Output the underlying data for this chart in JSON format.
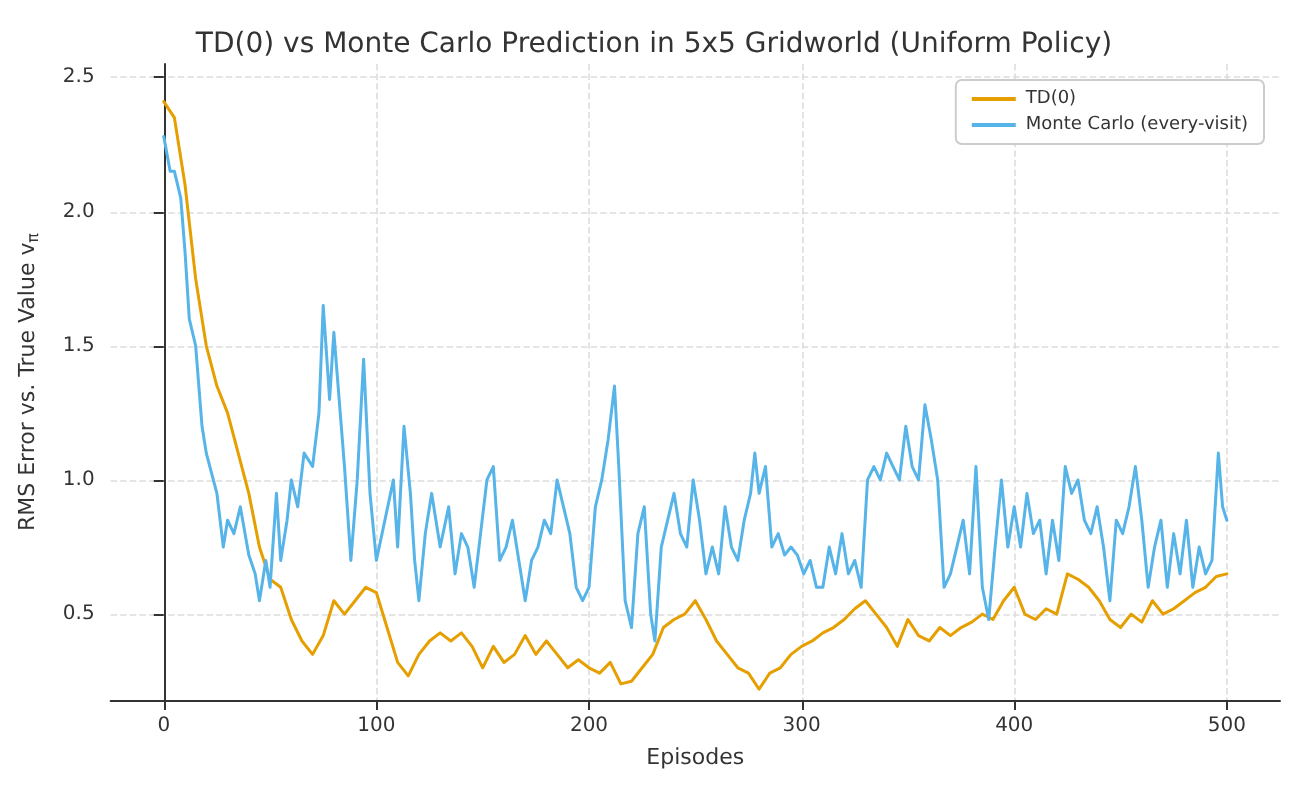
{
  "chart_data": {
    "type": "line",
    "title": "TD(0) vs Monte Carlo Prediction in 5x5 Gridworld (Uniform Policy)",
    "xlabel": "Episodes",
    "ylabel": "RMS Error vs. True Value v$_{π}$",
    "xlim": [
      -25,
      525
    ],
    "xticks": [
      0,
      100,
      200,
      300,
      400,
      500
    ],
    "ylim": [
      0.18,
      2.55
    ],
    "yticks": [
      0.5,
      {
        "value": 1,
        "label": "1.0"
      },
      1.5,
      {
        "value": 2,
        "label": "2.0"
      },
      2.5
    ],
    "grid": true,
    "legend": "top right",
    "marker": "none",
    "line_style": "solid",
    "series": [
      {
        "name": "TD(0)",
        "color": "#e69f00",
        "x": [
          0,
          5,
          10,
          15,
          20,
          25,
          30,
          35,
          40,
          45,
          50,
          55,
          60,
          65,
          70,
          75,
          80,
          85,
          90,
          95,
          100,
          105,
          110,
          115,
          120,
          125,
          130,
          135,
          140,
          145,
          150,
          155,
          160,
          165,
          170,
          175,
          180,
          185,
          190,
          195,
          200,
          205,
          210,
          215,
          220,
          225,
          230,
          235,
          240,
          245,
          250,
          255,
          260,
          265,
          270,
          275,
          280,
          285,
          290,
          295,
          300,
          305,
          310,
          315,
          320,
          325,
          330,
          335,
          340,
          345,
          350,
          355,
          360,
          365,
          370,
          375,
          380,
          385,
          390,
          395,
          400,
          405,
          410,
          415,
          420,
          425,
          430,
          435,
          440,
          445,
          450,
          455,
          460,
          465,
          470,
          475,
          480,
          485,
          490,
          495,
          500
        ],
        "values": [
          2.41,
          2.35,
          2.1,
          1.75,
          1.5,
          1.35,
          1.25,
          1.1,
          0.95,
          0.75,
          0.63,
          0.6,
          0.48,
          0.4,
          0.35,
          0.42,
          0.55,
          0.5,
          0.55,
          0.6,
          0.58,
          0.45,
          0.32,
          0.27,
          0.35,
          0.4,
          0.43,
          0.4,
          0.43,
          0.38,
          0.3,
          0.38,
          0.32,
          0.35,
          0.42,
          0.35,
          0.4,
          0.35,
          0.3,
          0.33,
          0.3,
          0.28,
          0.32,
          0.24,
          0.25,
          0.3,
          0.35,
          0.45,
          0.48,
          0.5,
          0.55,
          0.48,
          0.4,
          0.35,
          0.3,
          0.28,
          0.22,
          0.28,
          0.3,
          0.35,
          0.38,
          0.4,
          0.43,
          0.45,
          0.48,
          0.52,
          0.55,
          0.5,
          0.45,
          0.38,
          0.48,
          0.42,
          0.4,
          0.45,
          0.42,
          0.45,
          0.47,
          0.5,
          0.48,
          0.55,
          0.6,
          0.5,
          0.48,
          0.52,
          0.5,
          0.65,
          0.63,
          0.6,
          0.55,
          0.48,
          0.45,
          0.5,
          0.47,
          0.55,
          0.5,
          0.52,
          0.55,
          0.58,
          0.6,
          0.64,
          0.65
        ]
      },
      {
        "name": "Monte Carlo (every-visit)",
        "color": "#56b4e9",
        "x": [
          0,
          3,
          5,
          8,
          10,
          12,
          15,
          18,
          20,
          25,
          28,
          30,
          33,
          36,
          40,
          43,
          45,
          48,
          50,
          53,
          55,
          58,
          60,
          63,
          66,
          70,
          73,
          75,
          78,
          80,
          83,
          85,
          88,
          91,
          94,
          97,
          100,
          104,
          108,
          110,
          113,
          116,
          118,
          120,
          123,
          126,
          130,
          134,
          137,
          140,
          143,
          146,
          149,
          152,
          155,
          158,
          161,
          164,
          167,
          170,
          173,
          176,
          179,
          182,
          185,
          188,
          191,
          194,
          197,
          200,
          203,
          206,
          209,
          212,
          214,
          217,
          220,
          223,
          226,
          229,
          231,
          234,
          237,
          240,
          243,
          246,
          249,
          252,
          255,
          258,
          261,
          264,
          267,
          270,
          273,
          276,
          278,
          280,
          283,
          286,
          289,
          292,
          295,
          298,
          301,
          304,
          307,
          310,
          313,
          316,
          319,
          322,
          325,
          328,
          331,
          334,
          337,
          340,
          343,
          346,
          349,
          352,
          355,
          358,
          361,
          364,
          367,
          370,
          373,
          376,
          379,
          382,
          385,
          388,
          391,
          394,
          397,
          400,
          403,
          406,
          409,
          412,
          415,
          418,
          421,
          424,
          427,
          430,
          433,
          436,
          439,
          442,
          445,
          448,
          451,
          454,
          457,
          460,
          463,
          466,
          469,
          472,
          475,
          478,
          481,
          484,
          487,
          490,
          493,
          496,
          498,
          500
        ],
        "values": [
          2.28,
          2.15,
          2.15,
          2.05,
          1.85,
          1.6,
          1.5,
          1.2,
          1.1,
          0.95,
          0.75,
          0.85,
          0.8,
          0.9,
          0.72,
          0.65,
          0.55,
          0.7,
          0.6,
          0.95,
          0.7,
          0.85,
          1.0,
          0.9,
          1.1,
          1.05,
          1.25,
          1.65,
          1.3,
          1.55,
          1.25,
          1.05,
          0.7,
          1.0,
          1.45,
          0.95,
          0.7,
          0.85,
          1.0,
          0.75,
          1.2,
          0.95,
          0.7,
          0.55,
          0.8,
          0.95,
          0.75,
          0.9,
          0.65,
          0.8,
          0.75,
          0.6,
          0.8,
          1.0,
          1.05,
          0.7,
          0.75,
          0.85,
          0.7,
          0.55,
          0.7,
          0.75,
          0.85,
          0.8,
          1.0,
          0.9,
          0.8,
          0.6,
          0.55,
          0.6,
          0.9,
          1.0,
          1.15,
          1.35,
          1.05,
          0.55,
          0.45,
          0.8,
          0.9,
          0.5,
          0.4,
          0.75,
          0.85,
          0.95,
          0.8,
          0.75,
          1.0,
          0.85,
          0.65,
          0.75,
          0.65,
          0.9,
          0.75,
          0.7,
          0.85,
          0.95,
          1.1,
          0.95,
          1.05,
          0.75,
          0.8,
          0.72,
          0.75,
          0.72,
          0.65,
          0.7,
          0.6,
          0.6,
          0.75,
          0.65,
          0.8,
          0.65,
          0.7,
          0.6,
          1.0,
          1.05,
          1.0,
          1.1,
          1.05,
          1.0,
          1.2,
          1.05,
          1.0,
          1.28,
          1.15,
          1.0,
          0.6,
          0.65,
          0.75,
          0.85,
          0.65,
          1.05,
          0.6,
          0.48,
          0.75,
          1.0,
          0.75,
          0.9,
          0.75,
          0.95,
          0.8,
          0.85,
          0.65,
          0.85,
          0.7,
          1.05,
          0.95,
          1.0,
          0.85,
          0.8,
          0.9,
          0.75,
          0.55,
          0.85,
          0.8,
          0.9,
          1.05,
          0.85,
          0.6,
          0.75,
          0.85,
          0.6,
          0.8,
          0.65,
          0.85,
          0.6,
          0.75,
          0.65,
          0.7,
          1.1,
          0.9,
          0.85
        ]
      }
    ]
  }
}
